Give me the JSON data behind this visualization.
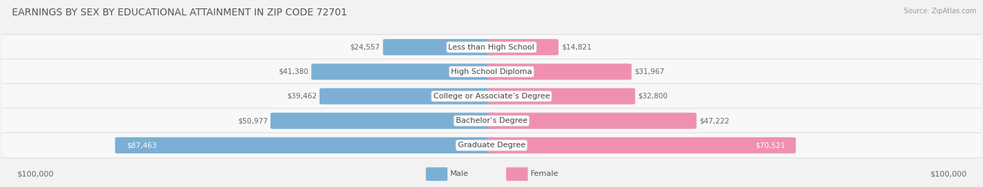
{
  "title": "EARNINGS BY SEX BY EDUCATIONAL ATTAINMENT IN ZIP CODE 72701",
  "source": "Source: ZipAtlas.com",
  "categories": [
    "Less than High School",
    "High School Diploma",
    "College or Associate’s Degree",
    "Bachelor’s Degree",
    "Graduate Degree"
  ],
  "male_values": [
    24557,
    41380,
    39462,
    50977,
    87463
  ],
  "female_values": [
    14821,
    31967,
    32800,
    47222,
    70521
  ],
  "max_value": 100000,
  "male_color": "#7bafd4",
  "female_color": "#f090b0",
  "male_label": "Male",
  "female_label": "Female",
  "bg_color": "#f2f2f2",
  "row_bg_color": "#f8f8f8",
  "row_edge_color": "#d8d8d8",
  "axis_label_left": "$100,000",
  "axis_label_right": "$100,000",
  "title_fontsize": 10,
  "source_fontsize": 7,
  "label_fontsize": 8,
  "value_fontsize": 7.5,
  "category_fontsize": 8,
  "male_inside_values": [
    87463
  ],
  "female_inside_values": [
    70521
  ]
}
